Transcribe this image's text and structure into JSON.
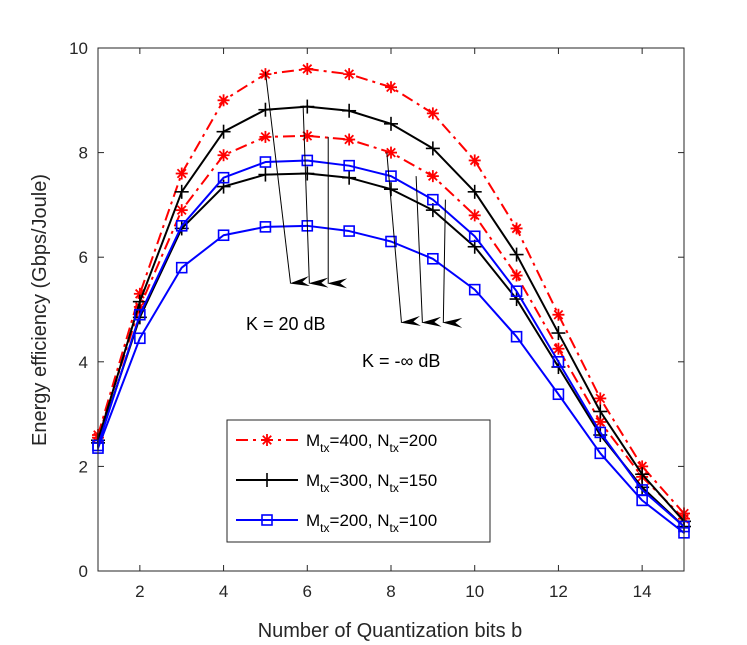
{
  "chart_data": {
    "type": "line",
    "title": "",
    "xlabel": "Number of Quantization bits b",
    "ylabel": "Energy efficiency (Gbps/Joule)",
    "xlim": [
      1,
      15
    ],
    "ylim": [
      0,
      10
    ],
    "xticks": [
      "2",
      "4",
      "6",
      "8",
      "10",
      "12",
      "14"
    ],
    "yticks": [
      "0",
      "2",
      "4",
      "6",
      "8",
      "10"
    ],
    "grid": false,
    "legend_position": "bottom-center",
    "x": [
      1,
      2,
      3,
      4,
      5,
      6,
      7,
      8,
      9,
      10,
      11,
      12,
      13,
      14,
      15
    ],
    "series": [
      {
        "name": "M_tx=400, N_tx=200, K = 20 dB",
        "legend_group": "m400",
        "color": "#ff0000",
        "line_style": "dashdot",
        "marker": "asterisk",
        "values": [
          2.6,
          5.3,
          7.6,
          9.0,
          9.5,
          9.6,
          9.5,
          9.25,
          8.75,
          7.85,
          6.55,
          4.9,
          3.3,
          2.0,
          1.1
        ]
      },
      {
        "name": "M_tx=400, N_tx=200, K = -inf dB",
        "legend_group": "m400",
        "color": "#ff0000",
        "line_style": "dashdot",
        "marker": "asterisk",
        "values": [
          2.55,
          5.05,
          6.9,
          7.95,
          8.3,
          8.32,
          8.25,
          8.0,
          7.55,
          6.8,
          5.65,
          4.25,
          2.85,
          1.8,
          1.0
        ]
      },
      {
        "name": "M_tx=300, N_tx=150, K = 20 dB",
        "legend_group": "m300",
        "color": "#000000",
        "line_style": "solid",
        "marker": "plus",
        "values": [
          2.5,
          5.15,
          7.25,
          8.4,
          8.82,
          8.88,
          8.8,
          8.55,
          8.08,
          7.25,
          6.05,
          4.55,
          3.05,
          1.85,
          0.95
        ]
      },
      {
        "name": "M_tx=300, N_tx=150, K = -inf dB",
        "legend_group": "m300",
        "color": "#000000",
        "line_style": "solid",
        "marker": "plus",
        "values": [
          2.45,
          4.85,
          6.55,
          7.35,
          7.58,
          7.6,
          7.52,
          7.3,
          6.9,
          6.2,
          5.2,
          3.9,
          2.6,
          1.6,
          0.85
        ]
      },
      {
        "name": "M_tx=200, N_tx=100, K = 20 dB",
        "legend_group": "m200",
        "color": "#0000ff",
        "line_style": "solid",
        "marker": "square",
        "values": [
          2.4,
          4.9,
          6.6,
          7.52,
          7.82,
          7.85,
          7.75,
          7.55,
          7.1,
          6.4,
          5.35,
          4.0,
          2.65,
          1.55,
          0.85
        ]
      },
      {
        "name": "M_tx=200, N_tx=100, K = -inf dB",
        "legend_group": "m200",
        "color": "#0000ff",
        "line_style": "solid",
        "marker": "square",
        "values": [
          2.35,
          4.45,
          5.8,
          6.42,
          6.58,
          6.6,
          6.5,
          6.3,
          5.97,
          5.38,
          4.48,
          3.38,
          2.25,
          1.35,
          0.73
        ]
      }
    ],
    "legend": [
      {
        "group": "m400",
        "prefix": "M",
        "sub1": "tx",
        "mid": "=400, N",
        "sub2": "tx",
        "suffix": "=200",
        "color": "#ff0000",
        "line_style": "dashdot",
        "marker": "asterisk"
      },
      {
        "group": "m300",
        "prefix": "M",
        "sub1": "tx",
        "mid": "=300, N",
        "sub2": "tx",
        "suffix": "=150",
        "color": "#000000",
        "line_style": "solid",
        "marker": "plus"
      },
      {
        "group": "m200",
        "prefix": "M",
        "sub1": "tx",
        "mid": "=200, N",
        "sub2": "tx",
        "suffix": "=100",
        "color": "#0000ff",
        "line_style": "solid",
        "marker": "square"
      }
    ],
    "annotations": [
      {
        "text": "K = 20 dB",
        "arrows": [
          {
            "from": [
              5.0,
              9.55
            ],
            "to": [
              5.6,
              5.5
            ]
          },
          {
            "from": [
              5.9,
              8.9
            ],
            "to": [
              6.05,
              5.5
            ]
          },
          {
            "from": [
              6.5,
              8.3
            ],
            "to": [
              6.5,
              5.5
            ]
          }
        ]
      },
      {
        "text": "K = -∞ dB",
        "arrows": [
          {
            "from": [
              7.9,
              8.0
            ],
            "to": [
              8.25,
              4.75
            ]
          },
          {
            "from": [
              8.6,
              7.55
            ],
            "to": [
              8.75,
              4.75
            ]
          },
          {
            "from": [
              9.3,
              7.1
            ],
            "to": [
              9.25,
              4.75
            ]
          }
        ]
      }
    ]
  }
}
